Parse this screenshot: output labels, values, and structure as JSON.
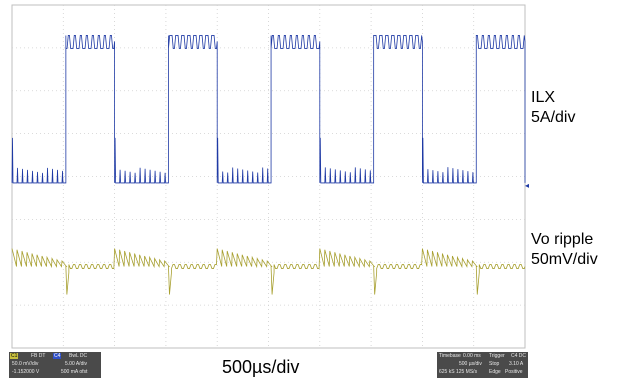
{
  "labels": {
    "ch_current_name": "ILX",
    "ch_current_scale": "5A/div",
    "ch_voltage_name": "Vo ripple",
    "ch_voltage_scale": "50mV/div",
    "timebase": "500µs/div"
  },
  "colors": {
    "current_trace": "#1f3aa5",
    "voltage_trace": "#a8a030",
    "grid": "#cfcfcf",
    "panel_bg": "#4a4a4a",
    "ch1_badge": "#c8c040",
    "ch4_badge": "#3050c8"
  },
  "status_bar": {
    "ch1_badge": "C1",
    "ch1_row1": "FB DT",
    "ch1_row2": "50.0 mV/div",
    "ch1_row3": "-1.152000 V",
    "ch4_badge": "C4",
    "ch4_row1": "BwL DC",
    "ch4_row2": "5.00 A/div",
    "ch4_row3": "500 mA ofst",
    "timebase_title": "Timebase",
    "timebase_val": "0.00 ms",
    "timebase_div": "500 µs/div",
    "timebase_samples": "625 kS  125 MS/s",
    "trigger_title": "Trigger",
    "trigger_ch": "C4 DC",
    "trigger_mode": "Stop",
    "trigger_level": "3.10 A",
    "trigger_type": "Edge",
    "trigger_slope": "Positive"
  },
  "chart_data": {
    "type": "line",
    "title": "",
    "xlabel": "500µs/div",
    "x_divisions": 10,
    "y_divisions": 8,
    "grid": true,
    "series": [
      {
        "name": "ILX",
        "scale": "5A/div",
        "type": "square-wave",
        "period_div": 2.0,
        "high_start_div": [
          1.05,
          3.05,
          5.05,
          7.05,
          9.05
        ],
        "high_end_div": [
          2.0,
          4.0,
          6.0,
          8.0,
          10.0
        ],
        "high_level_div": 7.15,
        "low_level_div": 3.85
      },
      {
        "name": "Vo ripple",
        "scale": "50mV/div",
        "type": "ripple",
        "baseline_div": 1.9
      }
    ]
  }
}
